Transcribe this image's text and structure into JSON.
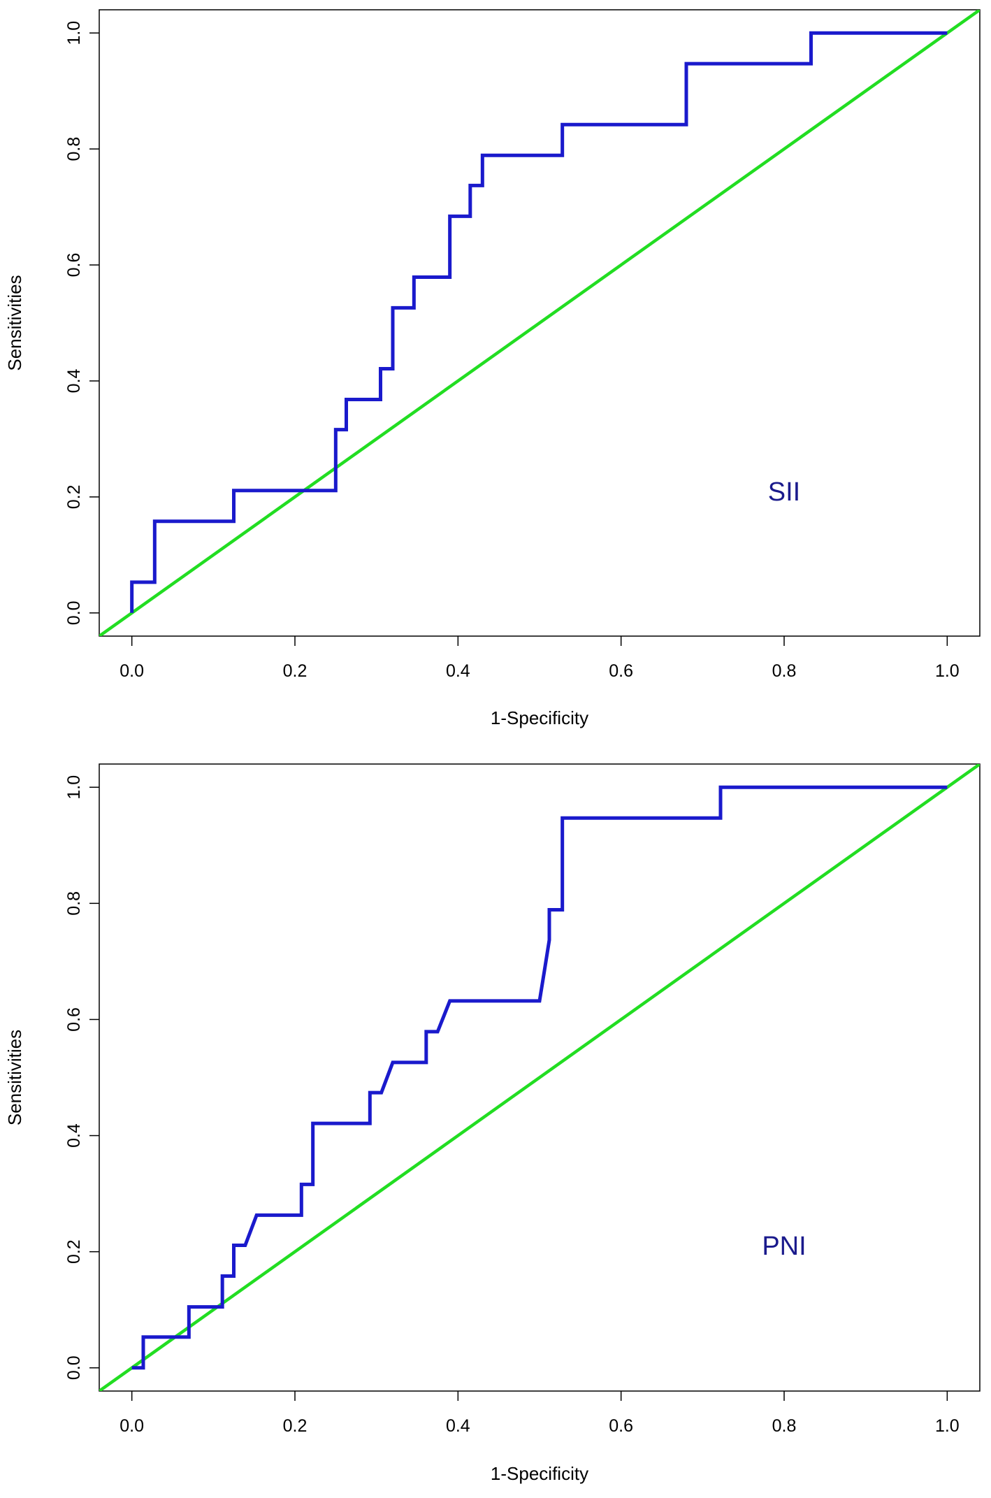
{
  "figure": {
    "panel_count": 2
  },
  "chart_data": [
    {
      "type": "line",
      "title": "",
      "annotation": "SII",
      "xlabel": "1-Specificity",
      "ylabel": "Sensitivities",
      "xlim": [
        -0.04,
        1.04
      ],
      "ylim": [
        -0.04,
        1.04
      ],
      "xticks": [
        0.0,
        0.2,
        0.4,
        0.6,
        0.8,
        1.0
      ],
      "xtick_labels": [
        "0.0",
        "0.2",
        "0.4",
        "0.6",
        "0.8",
        "1.0"
      ],
      "yticks": [
        0.0,
        0.2,
        0.4,
        0.6,
        0.8,
        1.0
      ],
      "ytick_labels": [
        "0.0",
        "0.2",
        "0.4",
        "0.6",
        "0.8",
        "1.0"
      ],
      "grid": false,
      "series": [
        {
          "name": "ROC curve",
          "color": "#1a1acc",
          "x": [
            0.0,
            0.0,
            0.028,
            0.028,
            0.125,
            0.125,
            0.25,
            0.25,
            0.263,
            0.263,
            0.305,
            0.305,
            0.32,
            0.32,
            0.346,
            0.346,
            0.39,
            0.39,
            0.415,
            0.415,
            0.43,
            0.43,
            0.528,
            0.528,
            0.68,
            0.68,
            0.833,
            0.833,
            1.0
          ],
          "y": [
            0.0,
            0.053,
            0.053,
            0.158,
            0.158,
            0.211,
            0.211,
            0.316,
            0.316,
            0.368,
            0.368,
            0.421,
            0.421,
            0.526,
            0.526,
            0.579,
            0.579,
            0.684,
            0.684,
            0.737,
            0.737,
            0.789,
            0.789,
            0.842,
            0.842,
            0.947,
            0.947,
            1.0,
            1.0
          ]
        },
        {
          "name": "Reference line",
          "color": "#22dd22",
          "x": [
            -0.04,
            1.04
          ],
          "y": [
            -0.04,
            1.04
          ]
        }
      ]
    },
    {
      "type": "line",
      "title": "",
      "annotation": "PNI",
      "xlabel": "1-Specificity",
      "ylabel": "Sensitivities",
      "xlim": [
        -0.04,
        1.04
      ],
      "ylim": [
        -0.04,
        1.04
      ],
      "xticks": [
        0.0,
        0.2,
        0.4,
        0.6,
        0.8,
        1.0
      ],
      "xtick_labels": [
        "0.0",
        "0.2",
        "0.4",
        "0.6",
        "0.8",
        "1.0"
      ],
      "yticks": [
        0.0,
        0.2,
        0.4,
        0.6,
        0.8,
        1.0
      ],
      "ytick_labels": [
        "0.0",
        "0.2",
        "0.4",
        "0.6",
        "0.8",
        "1.0"
      ],
      "grid": false,
      "series": [
        {
          "name": "ROC curve",
          "color": "#1a1acc",
          "x": [
            0.0,
            0.014,
            0.014,
            0.07,
            0.07,
            0.111,
            0.111,
            0.125,
            0.125,
            0.139,
            0.153,
            0.208,
            0.208,
            0.222,
            0.222,
            0.292,
            0.292,
            0.306,
            0.32,
            0.361,
            0.361,
            0.375,
            0.39,
            0.5,
            0.506,
            0.512,
            0.512,
            0.528,
            0.528,
            0.722,
            0.722,
            1.0
          ],
          "y": [
            0.0,
            0.0,
            0.053,
            0.053,
            0.105,
            0.105,
            0.158,
            0.158,
            0.211,
            0.211,
            0.263,
            0.263,
            0.316,
            0.316,
            0.421,
            0.421,
            0.474,
            0.474,
            0.526,
            0.526,
            0.579,
            0.579,
            0.632,
            0.632,
            0.684,
            0.737,
            0.789,
            0.789,
            0.947,
            0.947,
            1.0,
            1.0
          ]
        },
        {
          "name": "Reference line",
          "color": "#22dd22",
          "x": [
            -0.04,
            1.04
          ],
          "y": [
            -0.04,
            1.04
          ]
        }
      ]
    }
  ]
}
